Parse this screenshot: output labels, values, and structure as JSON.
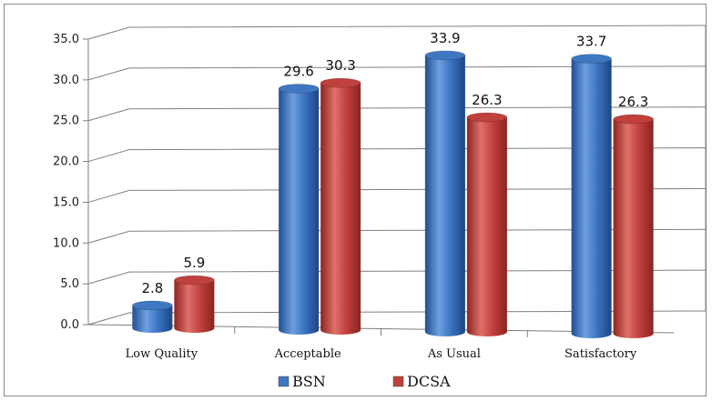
{
  "chart_data": {
    "type": "bar",
    "categories": [
      "Low Quality",
      "Acceptable",
      "As Usual",
      "Satisfactory"
    ],
    "series": [
      {
        "name": "BSN",
        "values": [
          2.8,
          29.6,
          33.9,
          33.7
        ]
      },
      {
        "name": "DCSA",
        "values": [
          5.9,
          30.3,
          26.3,
          26.3
        ]
      }
    ],
    "ylim": [
      0,
      35
    ],
    "y_ticks": [
      "0.0",
      "5.0",
      "10.0",
      "15.0",
      "20.0",
      "25.0",
      "30.0",
      "35.0"
    ],
    "grid": true,
    "legend_position": "bottom",
    "colors": {
      "BSN": "#3f77c0",
      "DCSA": "#c0403c"
    },
    "style": "3d"
  }
}
